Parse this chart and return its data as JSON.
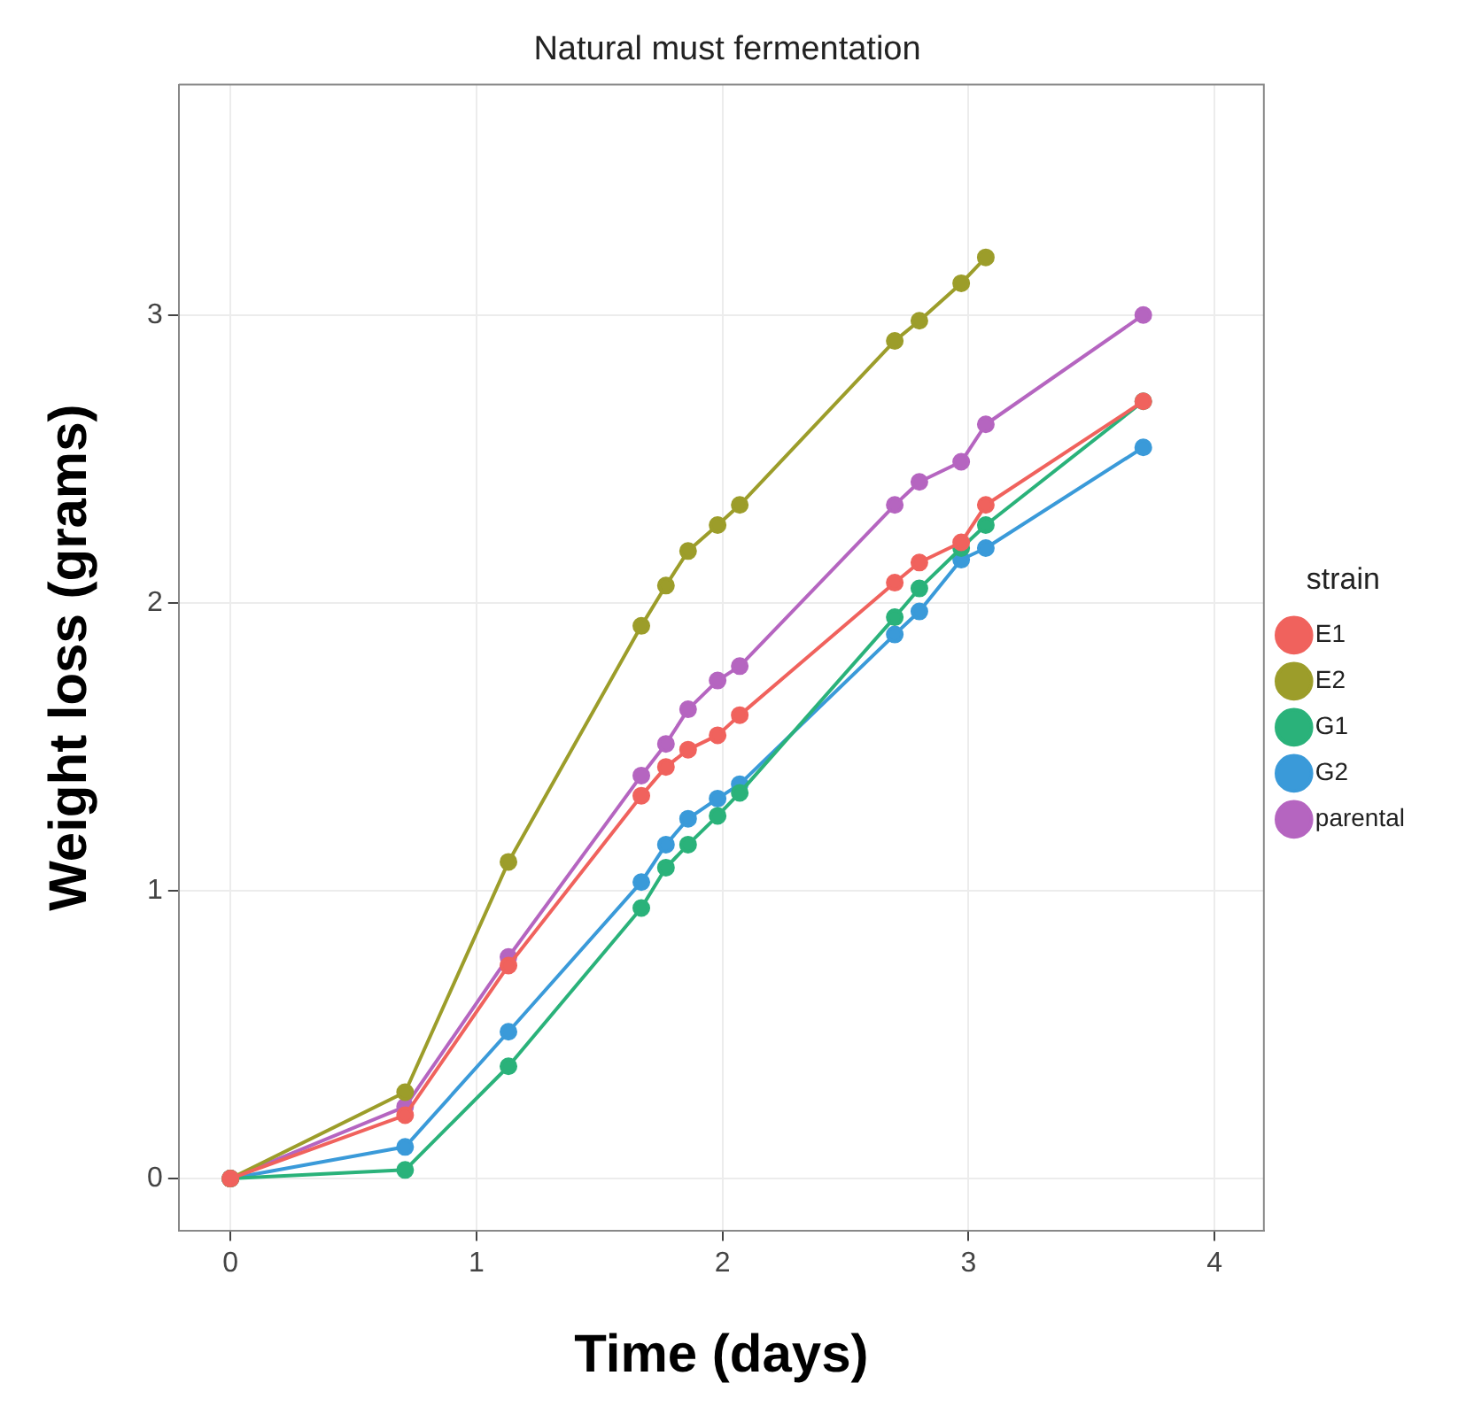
{
  "chart_data": {
    "type": "line",
    "title": "Natural must fermentation",
    "xlabel": "Time (days)",
    "ylabel": "Weight loss (grams)",
    "legend_title": "strain",
    "x": [
      0,
      0.71,
      1.13,
      1.67,
      1.77,
      1.86,
      1.98,
      2.07,
      2.7,
      2.8,
      2.97,
      3.07,
      3.71
    ],
    "series": [
      {
        "name": "E1",
        "color": "#f0625d",
        "values": [
          0,
          0.22,
          0.74,
          1.33,
          1.43,
          1.49,
          1.54,
          1.61,
          2.07,
          2.14,
          2.21,
          2.34,
          2.7
        ]
      },
      {
        "name": "E2",
        "color": "#9c9d2a",
        "values": [
          0,
          0.3,
          1.1,
          1.92,
          2.06,
          2.18,
          2.27,
          2.34,
          2.91,
          2.98,
          3.11,
          3.2,
          null
        ]
      },
      {
        "name": "G1",
        "color": "#2ab27a",
        "values": [
          0,
          0.03,
          0.39,
          0.94,
          1.08,
          1.16,
          1.26,
          1.34,
          1.95,
          2.05,
          2.19,
          2.27,
          2.7
        ]
      },
      {
        "name": "G2",
        "color": "#3a9ad9",
        "values": [
          0,
          0.11,
          0.51,
          1.03,
          1.16,
          1.25,
          1.32,
          1.37,
          1.89,
          1.97,
          2.15,
          2.19,
          2.54
        ]
      },
      {
        "name": "parental",
        "color": "#b565c0",
        "values": [
          0,
          0.25,
          0.77,
          1.4,
          1.51,
          1.63,
          1.73,
          1.78,
          2.34,
          2.42,
          2.49,
          2.62,
          3.0
        ]
      }
    ],
    "xlim": [
      -0.21,
      4.2
    ],
    "xticks": [
      0,
      1,
      2,
      3,
      4
    ],
    "ylim": [
      -0.18,
      3.8
    ],
    "yticks": [
      0,
      1,
      2,
      3
    ],
    "grid": true,
    "legend": "right",
    "marker": "circle",
    "line_style": "solid"
  }
}
